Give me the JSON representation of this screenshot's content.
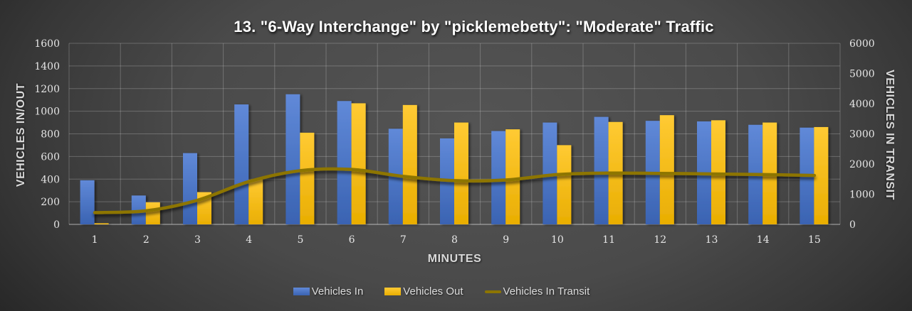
{
  "title": "13. \"6-Way Interchange\" by \"picklemebetty\": \"Moderate\" Traffic",
  "axes": {
    "x": {
      "title": "MINUTES",
      "categories": [
        "1",
        "2",
        "3",
        "4",
        "5",
        "6",
        "7",
        "8",
        "9",
        "10",
        "11",
        "12",
        "13",
        "14",
        "15"
      ]
    },
    "y_left": {
      "title": "VEHICLES IN/OUT",
      "min": 0,
      "max": 1600,
      "step": 200,
      "ticks": [
        "0",
        "200",
        "400",
        "600",
        "800",
        "1000",
        "1200",
        "1400",
        "1600"
      ]
    },
    "y_right": {
      "title": "VEHICLES IN TRANSIT",
      "min": 0,
      "max": 6000,
      "step": 1000,
      "ticks": [
        "0",
        "1000",
        "2000",
        "3000",
        "4000",
        "5000",
        "6000"
      ]
    }
  },
  "legend": [
    {
      "label": "Vehicles In",
      "type": "bar",
      "color": "#4a76cb"
    },
    {
      "label": "Vehicles Out",
      "type": "bar",
      "color": "#ffc113"
    },
    {
      "label": "Vehicles In Transit",
      "type": "line",
      "color": "#8d7500"
    }
  ],
  "colors": {
    "background_center": "#545454",
    "background_edge": "#1d1d1d",
    "gridline": "rgba(255,255,255,0.22)",
    "axis_line": "rgba(255,255,255,0.40)",
    "bar_blue_top": "#6089d8",
    "bar_blue_bottom": "#3a63b2",
    "bar_yellow_top": "#ffca33",
    "bar_yellow_bottom": "#e9ae02",
    "line": "#8d7500",
    "title_text": "#ffffff",
    "tick_text": "#e6e6e6",
    "axis_title_text": "#d9d9d9",
    "legend_text": "#dcdcdc"
  },
  "chart_data": {
    "type": "bar",
    "title": "13. \"6-Way Interchange\" by \"picklemebetty\": \"Moderate\" Traffic",
    "xlabel": "MINUTES",
    "ylabel_left": "VEHICLES IN/OUT",
    "ylabel_right": "VEHICLES IN TRANSIT",
    "ylim_left": [
      0,
      1600
    ],
    "ylim_right": [
      0,
      6000
    ],
    "grid": true,
    "legend_position": "bottom",
    "categories": [
      1,
      2,
      3,
      4,
      5,
      6,
      7,
      8,
      9,
      10,
      11,
      12,
      13,
      14,
      15
    ],
    "series": [
      {
        "name": "Vehicles In",
        "type": "bar",
        "axis": "left",
        "values": [
          390,
          255,
          630,
          1060,
          1150,
          1090,
          845,
          760,
          825,
          900,
          950,
          915,
          910,
          880,
          855
        ]
      },
      {
        "name": "Vehicles Out",
        "type": "bar",
        "axis": "left",
        "values": [
          10,
          195,
          285,
          395,
          810,
          1070,
          1055,
          900,
          840,
          700,
          905,
          965,
          920,
          900,
          860
        ]
      },
      {
        "name": "Vehicles In Transit",
        "type": "line",
        "axis": "right",
        "values": [
          390,
          450,
          800,
          1420,
          1780,
          1820,
          1590,
          1450,
          1470,
          1650,
          1700,
          1690,
          1670,
          1650,
          1620
        ]
      }
    ]
  }
}
